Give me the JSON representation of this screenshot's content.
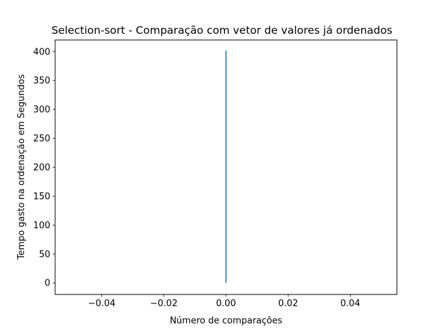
{
  "chart_data": {
    "type": "line",
    "title": "Selection-sort - Comparação com vetor de valores já ordenados",
    "xlabel": "Número de comparações",
    "ylabel": "Tempo gasto na ordenação  em Segundos",
    "xlim": [
      -0.055,
      0.055
    ],
    "ylim": [
      -20,
      420
    ],
    "xticks": [
      -0.04,
      -0.02,
      0.0,
      0.02,
      0.04
    ],
    "xtick_labels": [
      "−0.04",
      "−0.02",
      "0.00",
      "0.02",
      "0.04"
    ],
    "yticks": [
      0,
      50,
      100,
      150,
      200,
      250,
      300,
      350,
      400
    ],
    "ytick_labels": [
      "0",
      "50",
      "100",
      "150",
      "200",
      "250",
      "300",
      "350",
      "400"
    ],
    "grid": false,
    "series": [
      {
        "color": "#1f77b4",
        "x": [
          0,
          0
        ],
        "y": [
          0,
          402
        ]
      }
    ]
  }
}
